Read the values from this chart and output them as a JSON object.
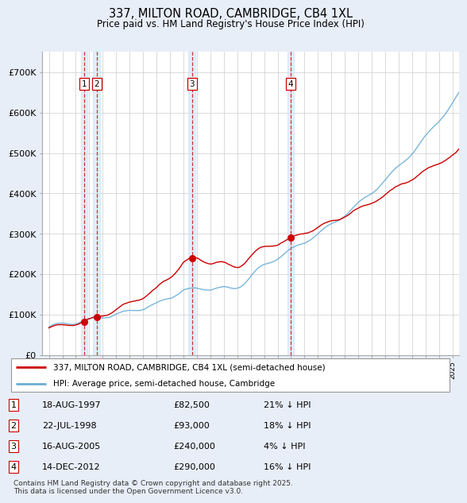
{
  "title": "337, MILTON ROAD, CAMBRIDGE, CB4 1XL",
  "subtitle": "Price paid vs. HM Land Registry's House Price Index (HPI)",
  "background_color": "#e8eef8",
  "plot_bg_color": "#ffffff",
  "transactions": [
    {
      "num": 1,
      "date": "18-AUG-1997",
      "date_x": 1997.63,
      "price": 82500,
      "pct": "21% ↓ HPI"
    },
    {
      "num": 2,
      "date": "22-JUL-1998",
      "date_x": 1998.55,
      "price": 93000,
      "pct": "18% ↓ HPI"
    },
    {
      "num": 3,
      "date": "16-AUG-2005",
      "date_x": 2005.63,
      "price": 240000,
      "pct": "4% ↓ HPI"
    },
    {
      "num": 4,
      "date": "14-DEC-2012",
      "date_x": 2012.96,
      "price": 290000,
      "pct": "16% ↓ HPI"
    }
  ],
  "legend_line1": "337, MILTON ROAD, CAMBRIDGE, CB4 1XL (semi-detached house)",
  "legend_line2": "HPI: Average price, semi-detached house, Cambridge",
  "footer": "Contains HM Land Registry data © Crown copyright and database right 2025.\nThis data is licensed under the Open Government Licence v3.0.",
  "hpi_color": "#6baed6",
  "price_color": "#cc0000",
  "ylim": [
    0,
    750000
  ],
  "xlim": [
    1994.5,
    2025.5
  ],
  "yticks": [
    0,
    100000,
    200000,
    300000,
    400000,
    500000,
    600000,
    700000
  ],
  "ytick_labels": [
    "£0",
    "£100K",
    "£200K",
    "£300K",
    "£400K",
    "£500K",
    "£600K",
    "£700K"
  ],
  "span_color": "#d0e4f7",
  "span_alpha": 0.6,
  "grid_color": "#cccccc"
}
